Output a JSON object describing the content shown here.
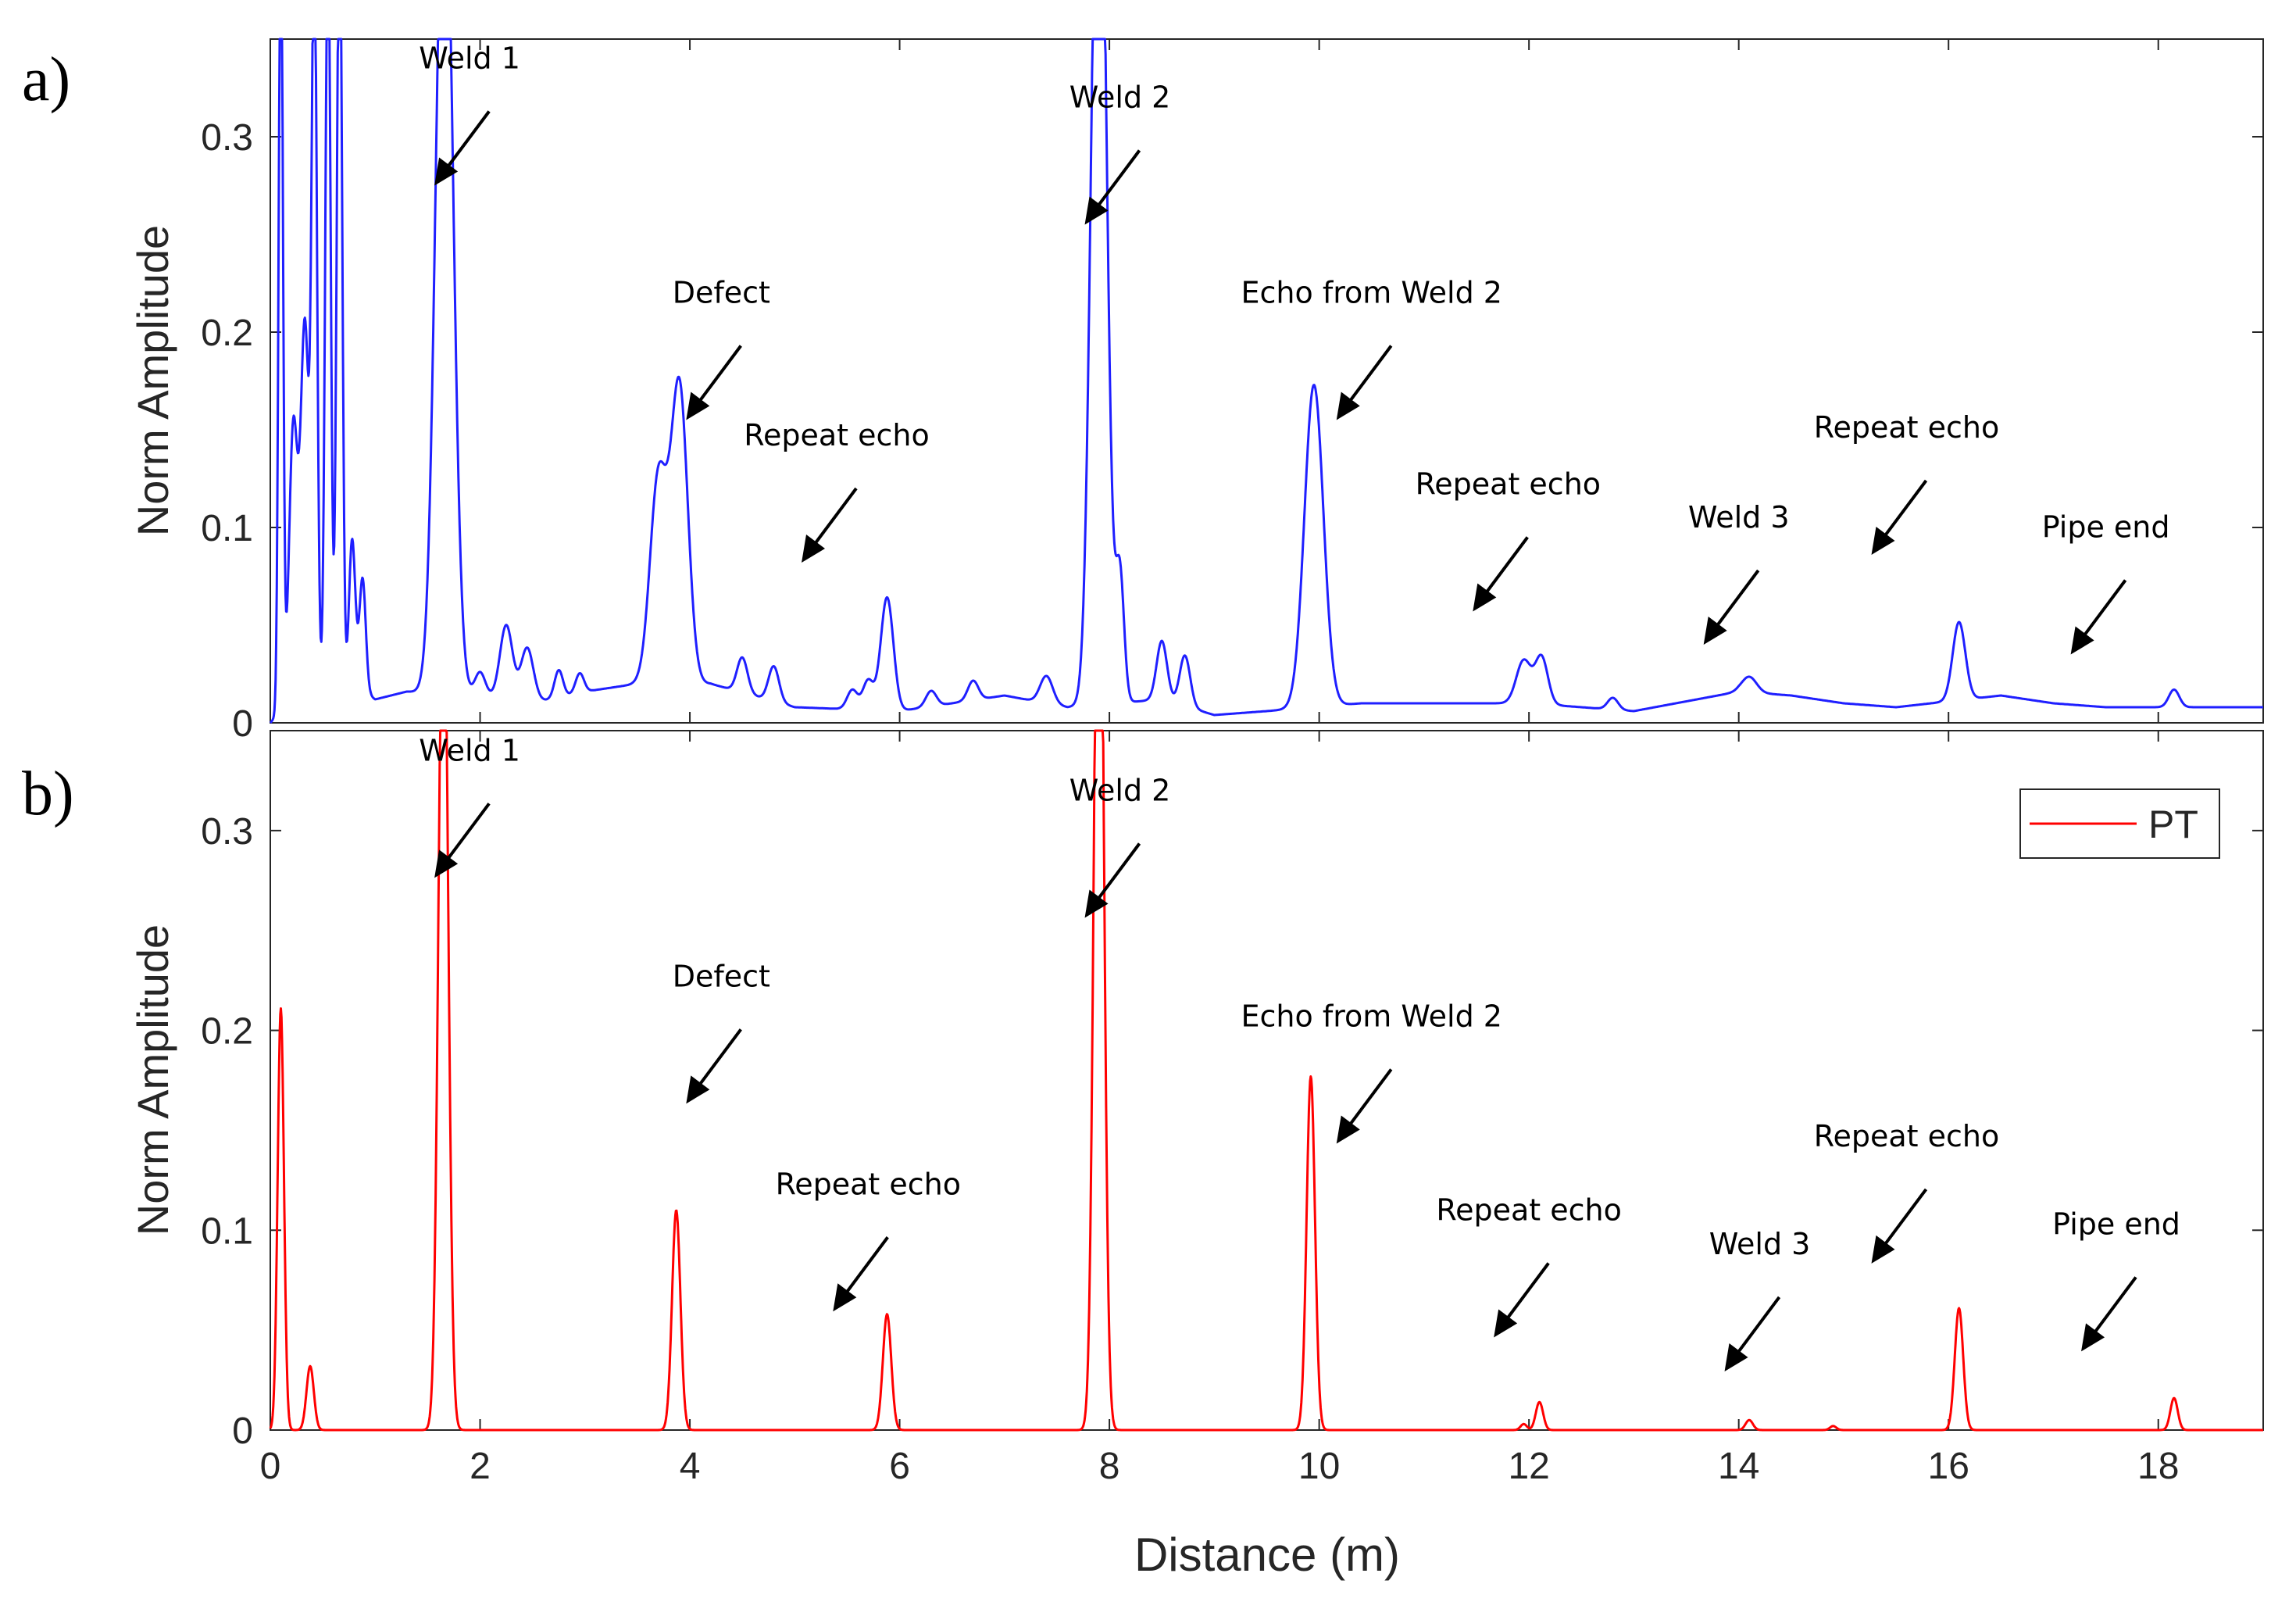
{
  "chart_data": [
    {
      "panel_label": "a)",
      "type": "line",
      "ylabel": "Norm Amplitude",
      "xlim": [
        0,
        19
      ],
      "ylim": [
        0,
        0.35
      ],
      "xticks": [
        0,
        2,
        4,
        6,
        8,
        10,
        12,
        14,
        16,
        18
      ],
      "yticks": [
        0,
        0.1,
        0.2,
        0.3
      ],
      "ytick_labels": [
        "0",
        "0.1",
        "0.2",
        "0.3"
      ],
      "color": "#1f1fff",
      "baseline": [
        [
          0.0,
          0.0
        ],
        [
          0.2,
          0.012
        ],
        [
          0.45,
          0.015
        ],
        [
          0.7,
          0.012
        ],
        [
          0.82,
          0.018
        ],
        [
          1.0,
          0.012
        ],
        [
          1.3,
          0.016
        ],
        [
          2.0,
          0.014
        ],
        [
          2.5,
          0.01
        ],
        [
          3.0,
          0.016
        ],
        [
          3.5,
          0.02
        ],
        [
          4.2,
          0.02
        ],
        [
          5.0,
          0.008
        ],
        [
          6.0,
          0.006
        ],
        [
          7.0,
          0.014
        ],
        [
          7.6,
          0.008
        ],
        [
          8.5,
          0.012
        ],
        [
          9.0,
          0.004
        ],
        [
          9.5,
          0.006
        ],
        [
          10.4,
          0.01
        ],
        [
          11.0,
          0.01
        ],
        [
          12.0,
          0.01
        ],
        [
          13.0,
          0.006
        ],
        [
          14.0,
          0.016
        ],
        [
          14.5,
          0.014
        ],
        [
          15.0,
          0.01
        ],
        [
          15.5,
          0.008
        ],
        [
          16.5,
          0.014
        ],
        [
          17.0,
          0.01
        ],
        [
          17.5,
          0.008
        ],
        [
          18.4,
          0.008
        ],
        [
          19.0,
          0.008
        ]
      ],
      "peaks": [
        {
          "x": 0.1,
          "h": 0.42,
          "w": 0.02
        },
        {
          "x": 0.22,
          "h": 0.14,
          "w": 0.04
        },
        {
          "x": 0.33,
          "h": 0.19,
          "w": 0.04
        },
        {
          "x": 0.42,
          "h": 0.38,
          "w": 0.025
        },
        {
          "x": 0.55,
          "h": 0.4,
          "w": 0.025
        },
        {
          "x": 0.66,
          "h": 0.42,
          "w": 0.025
        },
        {
          "x": 0.78,
          "h": 0.078,
          "w": 0.03
        },
        {
          "x": 0.88,
          "h": 0.058,
          "w": 0.03
        },
        {
          "x": 1.66,
          "h": 0.45,
          "w": 0.08
        },
        {
          "x": 2.0,
          "h": 0.012,
          "w": 0.05
        },
        {
          "x": 2.25,
          "h": 0.038,
          "w": 0.06
        },
        {
          "x": 2.45,
          "h": 0.028,
          "w": 0.06
        },
        {
          "x": 2.75,
          "h": 0.014,
          "w": 0.04
        },
        {
          "x": 2.95,
          "h": 0.01,
          "w": 0.04
        },
        {
          "x": 3.7,
          "h": 0.105,
          "w": 0.08
        },
        {
          "x": 3.9,
          "h": 0.152,
          "w": 0.08
        },
        {
          "x": 4.5,
          "h": 0.018,
          "w": 0.05
        },
        {
          "x": 4.8,
          "h": 0.018,
          "w": 0.05
        },
        {
          "x": 5.55,
          "h": 0.01,
          "w": 0.05
        },
        {
          "x": 5.7,
          "h": 0.015,
          "w": 0.05
        },
        {
          "x": 5.88,
          "h": 0.058,
          "w": 0.06
        },
        {
          "x": 6.3,
          "h": 0.008,
          "w": 0.05
        },
        {
          "x": 6.7,
          "h": 0.01,
          "w": 0.05
        },
        {
          "x": 7.4,
          "h": 0.014,
          "w": 0.06
        },
        {
          "x": 7.9,
          "h": 0.5,
          "w": 0.07
        },
        {
          "x": 8.1,
          "h": 0.065,
          "w": 0.04
        },
        {
          "x": 8.5,
          "h": 0.03,
          "w": 0.05
        },
        {
          "x": 8.72,
          "h": 0.026,
          "w": 0.05
        },
        {
          "x": 9.95,
          "h": 0.165,
          "w": 0.09
        },
        {
          "x": 11.95,
          "h": 0.022,
          "w": 0.07
        },
        {
          "x": 12.12,
          "h": 0.024,
          "w": 0.06
        },
        {
          "x": 12.8,
          "h": 0.006,
          "w": 0.05
        },
        {
          "x": 14.1,
          "h": 0.008,
          "w": 0.07
        },
        {
          "x": 16.1,
          "h": 0.04,
          "w": 0.06
        },
        {
          "x": 18.15,
          "h": 0.009,
          "w": 0.05
        }
      ],
      "annotations": [
        {
          "text": "Weld 1",
          "x": 1.9,
          "y": 0.335
        },
        {
          "text": "Weld 2",
          "x": 8.1,
          "y": 0.315
        },
        {
          "text": "Defect",
          "x": 4.3,
          "y": 0.215
        },
        {
          "text": "Echo from Weld 2",
          "x": 10.5,
          "y": 0.215
        },
        {
          "text": "Repeat echo",
          "x": 5.4,
          "y": 0.142
        },
        {
          "text": "Repeat echo",
          "x": 11.8,
          "y": 0.117
        },
        {
          "text": "Weld 3",
          "x": 14.0,
          "y": 0.1
        },
        {
          "text": "Repeat echo",
          "x": 15.6,
          "y": 0.146
        },
        {
          "text": "Pipe end",
          "x": 17.5,
          "y": 0.095
        }
      ]
    },
    {
      "panel_label": "b)",
      "type": "line",
      "xlabel": "Distance (m)",
      "ylabel": "Norm Amplitude",
      "xlim": [
        0,
        19
      ],
      "ylim": [
        0,
        0.35
      ],
      "xticks": [
        0,
        2,
        4,
        6,
        8,
        10,
        12,
        14,
        16,
        18
      ],
      "xtick_labels": [
        "0",
        "2",
        "4",
        "6",
        "8",
        "10",
        "12",
        "14",
        "16",
        "18"
      ],
      "yticks": [
        0,
        0.1,
        0.2,
        0.3
      ],
      "ytick_labels": [
        "0",
        "0.1",
        "0.2",
        "0.3"
      ],
      "color": "#ff0000",
      "legend": {
        "label": "PT",
        "position": "top-right"
      },
      "peaks": [
        {
          "x": 0.1,
          "h": 0.211,
          "w": 0.03
        },
        {
          "x": 0.38,
          "h": 0.032,
          "w": 0.035
        },
        {
          "x": 1.65,
          "h": 0.45,
          "w": 0.045
        },
        {
          "x": 3.87,
          "h": 0.11,
          "w": 0.04
        },
        {
          "x": 5.88,
          "h": 0.058,
          "w": 0.04
        },
        {
          "x": 7.9,
          "h": 0.52,
          "w": 0.045
        },
        {
          "x": 9.92,
          "h": 0.177,
          "w": 0.04
        },
        {
          "x": 11.95,
          "h": 0.003,
          "w": 0.03
        },
        {
          "x": 12.1,
          "h": 0.014,
          "w": 0.035
        },
        {
          "x": 14.1,
          "h": 0.005,
          "w": 0.035
        },
        {
          "x": 14.9,
          "h": 0.002,
          "w": 0.03
        },
        {
          "x": 16.1,
          "h": 0.061,
          "w": 0.04
        },
        {
          "x": 18.15,
          "h": 0.016,
          "w": 0.035
        }
      ],
      "annotations": [
        {
          "text": "Weld 1",
          "x": 1.9,
          "y": 0.335
        },
        {
          "text": "Weld 2",
          "x": 8.1,
          "y": 0.315
        },
        {
          "text": "Defect",
          "x": 4.3,
          "y": 0.222
        },
        {
          "text": "Echo from Weld 2",
          "x": 10.5,
          "y": 0.202
        },
        {
          "text": "Repeat echo",
          "x": 5.7,
          "y": 0.118
        },
        {
          "text": "Repeat echo",
          "x": 12.0,
          "y": 0.105
        },
        {
          "text": "Weld 3",
          "x": 14.2,
          "y": 0.088
        },
        {
          "text": "Repeat echo",
          "x": 15.6,
          "y": 0.142
        },
        {
          "text": "Pipe end",
          "x": 17.6,
          "y": 0.098
        }
      ]
    }
  ]
}
